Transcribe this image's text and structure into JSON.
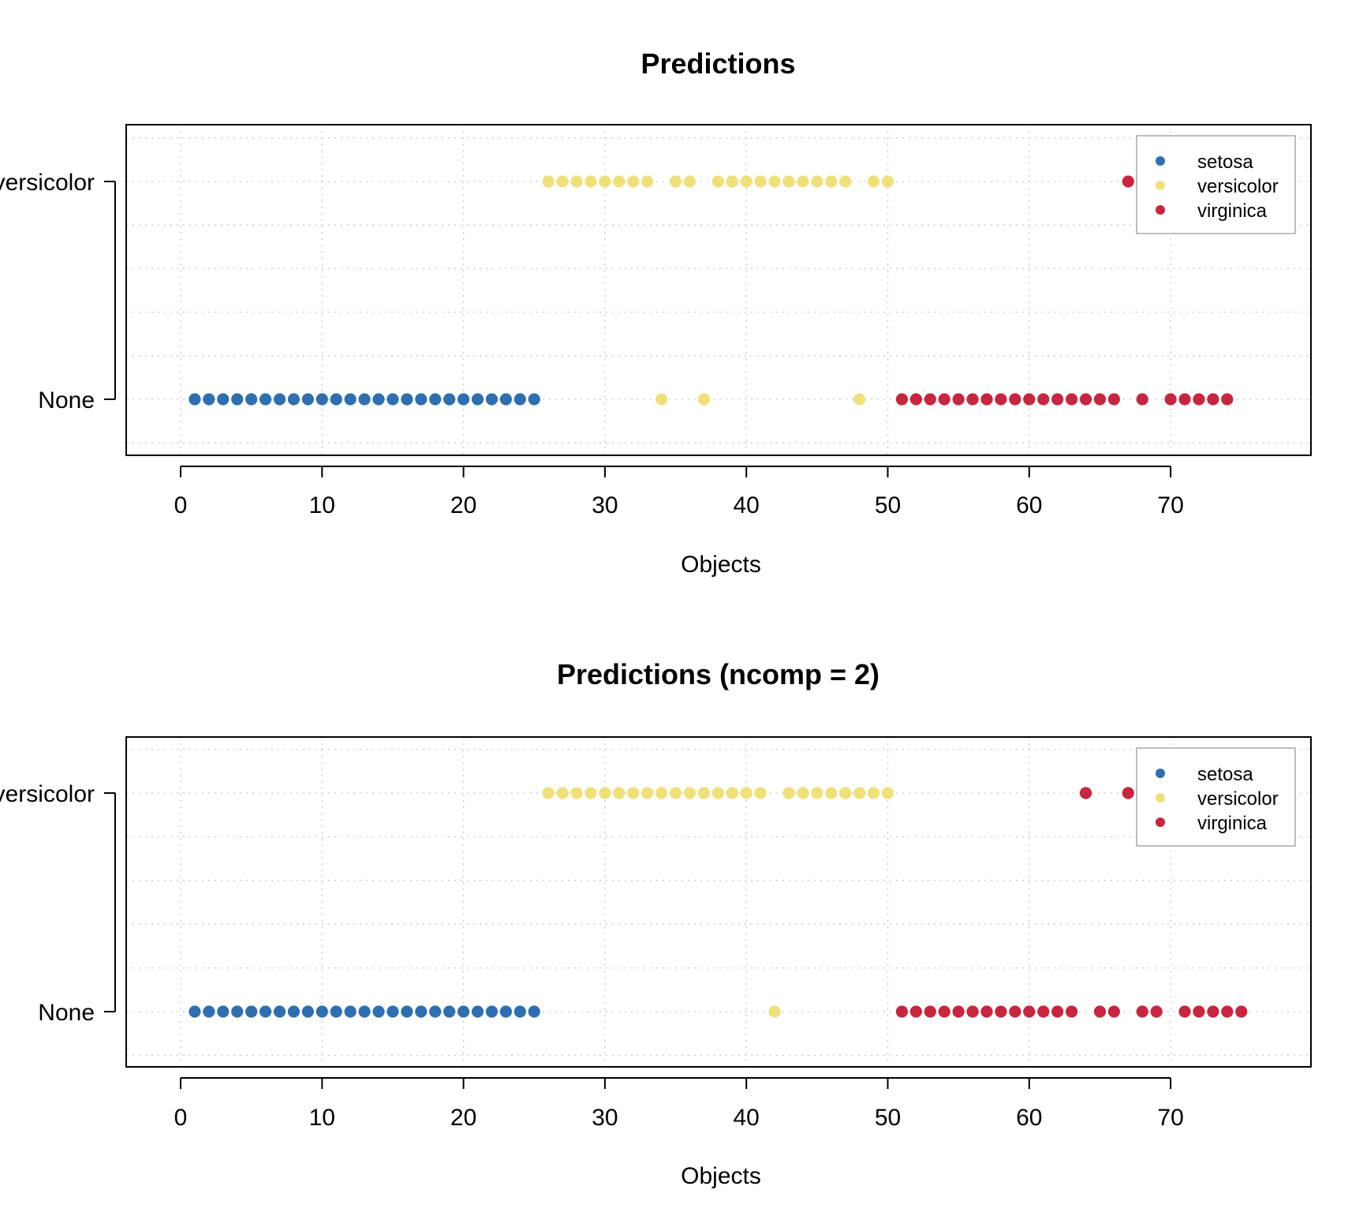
{
  "colors": {
    "setosa": "#2e6fb0",
    "versicolor": "#efe07a",
    "virginica": "#c8253f",
    "grid": "#c8c8c8",
    "axis": "#000000",
    "legend_border": "#a8a8a8"
  },
  "chart_data": [
    {
      "type": "scatter",
      "title": "Predictions",
      "xlabel": "Objects",
      "ylabel": "",
      "xlim": [
        0,
        80
      ],
      "xticks": [
        0,
        10,
        20,
        30,
        40,
        50,
        60,
        70
      ],
      "xtick_labels": [
        "0",
        "10",
        "20",
        "30",
        "40",
        "50",
        "60",
        "70"
      ],
      "y_categories": [
        "None",
        "versicolor"
      ],
      "ytick_labels": [
        "None",
        "versicolor"
      ],
      "grid": true,
      "legend_position": "top-right",
      "legend": [
        "setosa",
        "versicolor",
        "virginica"
      ],
      "series": [
        {
          "name": "setosa",
          "color_key": "setosa",
          "points": [
            {
              "x": 1,
              "y": "None"
            },
            {
              "x": 2,
              "y": "None"
            },
            {
              "x": 3,
              "y": "None"
            },
            {
              "x": 4,
              "y": "None"
            },
            {
              "x": 5,
              "y": "None"
            },
            {
              "x": 6,
              "y": "None"
            },
            {
              "x": 7,
              "y": "None"
            },
            {
              "x": 8,
              "y": "None"
            },
            {
              "x": 9,
              "y": "None"
            },
            {
              "x": 10,
              "y": "None"
            },
            {
              "x": 11,
              "y": "None"
            },
            {
              "x": 12,
              "y": "None"
            },
            {
              "x": 13,
              "y": "None"
            },
            {
              "x": 14,
              "y": "None"
            },
            {
              "x": 15,
              "y": "None"
            },
            {
              "x": 16,
              "y": "None"
            },
            {
              "x": 17,
              "y": "None"
            },
            {
              "x": 18,
              "y": "None"
            },
            {
              "x": 19,
              "y": "None"
            },
            {
              "x": 20,
              "y": "None"
            },
            {
              "x": 21,
              "y": "None"
            },
            {
              "x": 22,
              "y": "None"
            },
            {
              "x": 23,
              "y": "None"
            },
            {
              "x": 24,
              "y": "None"
            },
            {
              "x": 25,
              "y": "None"
            }
          ]
        },
        {
          "name": "versicolor",
          "color_key": "versicolor",
          "points": [
            {
              "x": 26,
              "y": "versicolor"
            },
            {
              "x": 27,
              "y": "versicolor"
            },
            {
              "x": 28,
              "y": "versicolor"
            },
            {
              "x": 29,
              "y": "versicolor"
            },
            {
              "x": 30,
              "y": "versicolor"
            },
            {
              "x": 31,
              "y": "versicolor"
            },
            {
              "x": 32,
              "y": "versicolor"
            },
            {
              "x": 33,
              "y": "versicolor"
            },
            {
              "x": 34,
              "y": "None"
            },
            {
              "x": 35,
              "y": "versicolor"
            },
            {
              "x": 36,
              "y": "versicolor"
            },
            {
              "x": 37,
              "y": "None"
            },
            {
              "x": 38,
              "y": "versicolor"
            },
            {
              "x": 39,
              "y": "versicolor"
            },
            {
              "x": 40,
              "y": "versicolor"
            },
            {
              "x": 41,
              "y": "versicolor"
            },
            {
              "x": 42,
              "y": "versicolor"
            },
            {
              "x": 43,
              "y": "versicolor"
            },
            {
              "x": 44,
              "y": "versicolor"
            },
            {
              "x": 45,
              "y": "versicolor"
            },
            {
              "x": 46,
              "y": "versicolor"
            },
            {
              "x": 47,
              "y": "versicolor"
            },
            {
              "x": 48,
              "y": "None"
            },
            {
              "x": 49,
              "y": "versicolor"
            },
            {
              "x": 50,
              "y": "versicolor"
            }
          ]
        },
        {
          "name": "virginica",
          "color_key": "virginica",
          "points": [
            {
              "x": 51,
              "y": "None"
            },
            {
              "x": 52,
              "y": "None"
            },
            {
              "x": 53,
              "y": "None"
            },
            {
              "x": 54,
              "y": "None"
            },
            {
              "x": 55,
              "y": "None"
            },
            {
              "x": 56,
              "y": "None"
            },
            {
              "x": 57,
              "y": "None"
            },
            {
              "x": 58,
              "y": "None"
            },
            {
              "x": 59,
              "y": "None"
            },
            {
              "x": 60,
              "y": "None"
            },
            {
              "x": 61,
              "y": "None"
            },
            {
              "x": 62,
              "y": "None"
            },
            {
              "x": 63,
              "y": "None"
            },
            {
              "x": 64,
              "y": "None"
            },
            {
              "x": 65,
              "y": "None"
            },
            {
              "x": 66,
              "y": "None"
            },
            {
              "x": 67,
              "y": "versicolor"
            },
            {
              "x": 68,
              "y": "None"
            },
            {
              "x": 70,
              "y": "None"
            },
            {
              "x": 71,
              "y": "None"
            },
            {
              "x": 72,
              "y": "None"
            },
            {
              "x": 73,
              "y": "None"
            },
            {
              "x": 74,
              "y": "None"
            }
          ]
        }
      ]
    },
    {
      "type": "scatter",
      "title": "Predictions (ncomp = 2)",
      "xlabel": "Objects",
      "ylabel": "",
      "xlim": [
        0,
        80
      ],
      "xticks": [
        0,
        10,
        20,
        30,
        40,
        50,
        60,
        70
      ],
      "xtick_labels": [
        "0",
        "10",
        "20",
        "30",
        "40",
        "50",
        "60",
        "70"
      ],
      "y_categories": [
        "None",
        "versicolor"
      ],
      "ytick_labels": [
        "None",
        "versicolor"
      ],
      "grid": true,
      "legend_position": "top-right",
      "legend": [
        "setosa",
        "versicolor",
        "virginica"
      ],
      "series": [
        {
          "name": "setosa",
          "color_key": "setosa",
          "points": [
            {
              "x": 1,
              "y": "None"
            },
            {
              "x": 2,
              "y": "None"
            },
            {
              "x": 3,
              "y": "None"
            },
            {
              "x": 4,
              "y": "None"
            },
            {
              "x": 5,
              "y": "None"
            },
            {
              "x": 6,
              "y": "None"
            },
            {
              "x": 7,
              "y": "None"
            },
            {
              "x": 8,
              "y": "None"
            },
            {
              "x": 9,
              "y": "None"
            },
            {
              "x": 10,
              "y": "None"
            },
            {
              "x": 11,
              "y": "None"
            },
            {
              "x": 12,
              "y": "None"
            },
            {
              "x": 13,
              "y": "None"
            },
            {
              "x": 14,
              "y": "None"
            },
            {
              "x": 15,
              "y": "None"
            },
            {
              "x": 16,
              "y": "None"
            },
            {
              "x": 17,
              "y": "None"
            },
            {
              "x": 18,
              "y": "None"
            },
            {
              "x": 19,
              "y": "None"
            },
            {
              "x": 20,
              "y": "None"
            },
            {
              "x": 21,
              "y": "None"
            },
            {
              "x": 22,
              "y": "None"
            },
            {
              "x": 23,
              "y": "None"
            },
            {
              "x": 24,
              "y": "None"
            },
            {
              "x": 25,
              "y": "None"
            }
          ]
        },
        {
          "name": "versicolor",
          "color_key": "versicolor",
          "points": [
            {
              "x": 26,
              "y": "versicolor"
            },
            {
              "x": 27,
              "y": "versicolor"
            },
            {
              "x": 28,
              "y": "versicolor"
            },
            {
              "x": 29,
              "y": "versicolor"
            },
            {
              "x": 30,
              "y": "versicolor"
            },
            {
              "x": 31,
              "y": "versicolor"
            },
            {
              "x": 32,
              "y": "versicolor"
            },
            {
              "x": 33,
              "y": "versicolor"
            },
            {
              "x": 34,
              "y": "versicolor"
            },
            {
              "x": 35,
              "y": "versicolor"
            },
            {
              "x": 36,
              "y": "versicolor"
            },
            {
              "x": 37,
              "y": "versicolor"
            },
            {
              "x": 38,
              "y": "versicolor"
            },
            {
              "x": 39,
              "y": "versicolor"
            },
            {
              "x": 40,
              "y": "versicolor"
            },
            {
              "x": 41,
              "y": "versicolor"
            },
            {
              "x": 42,
              "y": "None"
            },
            {
              "x": 43,
              "y": "versicolor"
            },
            {
              "x": 44,
              "y": "versicolor"
            },
            {
              "x": 45,
              "y": "versicolor"
            },
            {
              "x": 46,
              "y": "versicolor"
            },
            {
              "x": 47,
              "y": "versicolor"
            },
            {
              "x": 48,
              "y": "versicolor"
            },
            {
              "x": 49,
              "y": "versicolor"
            },
            {
              "x": 50,
              "y": "versicolor"
            }
          ]
        },
        {
          "name": "virginica",
          "color_key": "virginica",
          "points": [
            {
              "x": 51,
              "y": "None"
            },
            {
              "x": 52,
              "y": "None"
            },
            {
              "x": 53,
              "y": "None"
            },
            {
              "x": 54,
              "y": "None"
            },
            {
              "x": 55,
              "y": "None"
            },
            {
              "x": 56,
              "y": "None"
            },
            {
              "x": 57,
              "y": "None"
            },
            {
              "x": 58,
              "y": "None"
            },
            {
              "x": 59,
              "y": "None"
            },
            {
              "x": 60,
              "y": "None"
            },
            {
              "x": 61,
              "y": "None"
            },
            {
              "x": 62,
              "y": "None"
            },
            {
              "x": 63,
              "y": "None"
            },
            {
              "x": 64,
              "y": "versicolor"
            },
            {
              "x": 65,
              "y": "None"
            },
            {
              "x": 66,
              "y": "None"
            },
            {
              "x": 67,
              "y": "versicolor"
            },
            {
              "x": 68,
              "y": "None"
            },
            {
              "x": 69,
              "y": "None"
            },
            {
              "x": 71,
              "y": "None"
            },
            {
              "x": 72,
              "y": "None"
            },
            {
              "x": 73,
              "y": "None"
            },
            {
              "x": 74,
              "y": "None"
            },
            {
              "x": 75,
              "y": "None"
            }
          ]
        }
      ]
    }
  ]
}
